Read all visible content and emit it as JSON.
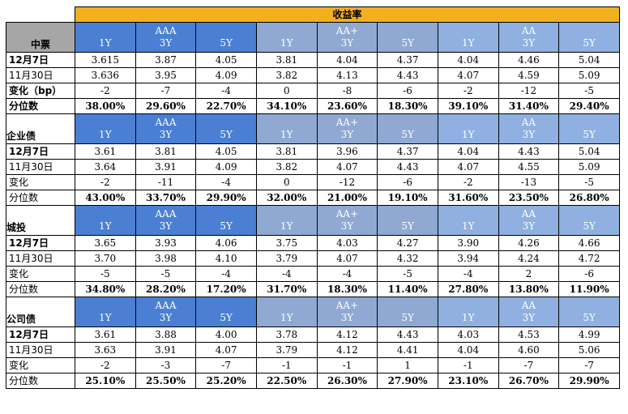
{
  "header": {
    "title": "收益率"
  },
  "ratings": [
    "AAA",
    "AA+",
    "AA"
  ],
  "tenors": [
    "1Y",
    "3Y",
    "5Y"
  ],
  "sections": [
    {
      "name": "中票",
      "rows": [
        {
          "label": "12月7日",
          "values": [
            "3.615",
            "3.87",
            "4.05",
            "3.81",
            "4.04",
            "4.37",
            "4.04",
            "4.46",
            "5.04"
          ]
        },
        {
          "label": "11月30日",
          "values": [
            "3.636",
            "3.95",
            "4.09",
            "3.82",
            "4.13",
            "4.43",
            "4.07",
            "4.59",
            "5.09"
          ]
        },
        {
          "label": "变化（bp）",
          "values": [
            "-2",
            "-7",
            "-4",
            "0",
            "-8",
            "-6",
            "-2",
            "-12",
            "-5"
          ]
        },
        {
          "label": "分位数",
          "values": [
            "38.00%",
            "29.60%",
            "22.70%",
            "34.10%",
            "23.60%",
            "18.30%",
            "39.10%",
            "31.40%",
            "29.40%"
          ]
        }
      ]
    },
    {
      "name": "企业债",
      "rows": [
        {
          "label": "12月7日",
          "values": [
            "3.61",
            "3.81",
            "4.05",
            "3.81",
            "3.96",
            "4.37",
            "4.04",
            "4.43",
            "5.04"
          ]
        },
        {
          "label": "11月30日",
          "values": [
            "3.64",
            "3.91",
            "4.09",
            "3.82",
            "4.07",
            "4.43",
            "4.07",
            "4.55",
            "5.09"
          ]
        },
        {
          "label": "变化",
          "values": [
            "-2",
            "-11",
            "-4",
            "0",
            "-12",
            "-6",
            "-2",
            "-13",
            "-5"
          ]
        },
        {
          "label": "分位数",
          "values": [
            "43.00%",
            "33.70%",
            "29.90%",
            "32.00%",
            "21.00%",
            "19.10%",
            "31.60%",
            "23.50%",
            "26.80%"
          ]
        }
      ]
    },
    {
      "name": "城投",
      "rows": [
        {
          "label": "12月7日",
          "values": [
            "3.65",
            "3.93",
            "4.06",
            "3.75",
            "4.03",
            "4.27",
            "3.90",
            "4.26",
            "4.66"
          ]
        },
        {
          "label": "11月30日",
          "values": [
            "3.70",
            "3.98",
            "4.10",
            "3.79",
            "4.07",
            "4.32",
            "3.94",
            "4.24",
            "4.72"
          ]
        },
        {
          "label": "变化",
          "values": [
            "-5",
            "-5",
            "-4",
            "-4",
            "-4",
            "-5",
            "-4",
            "2",
            "-6"
          ]
        },
        {
          "label": "分位数",
          "values": [
            "34.80%",
            "28.20%",
            "17.20%",
            "31.70%",
            "18.30%",
            "11.40%",
            "27.80%",
            "13.80%",
            "11.90%"
          ]
        }
      ]
    },
    {
      "name": "公司债",
      "rows": [
        {
          "label": "12月7日",
          "values": [
            "3.61",
            "3.88",
            "4.00",
            "3.78",
            "4.12",
            "4.43",
            "4.03",
            "4.53",
            "4.99"
          ]
        },
        {
          "label": "11月30日",
          "values": [
            "3.63",
            "3.91",
            "4.07",
            "3.79",
            "4.12",
            "4.41",
            "4.04",
            "4.60",
            "5.06"
          ]
        },
        {
          "label": "变化",
          "values": [
            "-2",
            "-3",
            "-7",
            "-1",
            "-1",
            "1",
            "-1",
            "-7",
            "-7"
          ]
        },
        {
          "label": "分位数",
          "values": [
            "25.10%",
            "25.50%",
            "25.20%",
            "22.50%",
            "26.30%",
            "27.90%",
            "23.10%",
            "26.70%",
            "29.90%"
          ]
        }
      ]
    }
  ],
  "colors": {
    "header_bar": "#f2b01e",
    "aaa": "#4a7fd4",
    "aa_plus": "#8fa9d3",
    "aa": "#8fb0e0",
    "gray": "#a6a6a6"
  }
}
